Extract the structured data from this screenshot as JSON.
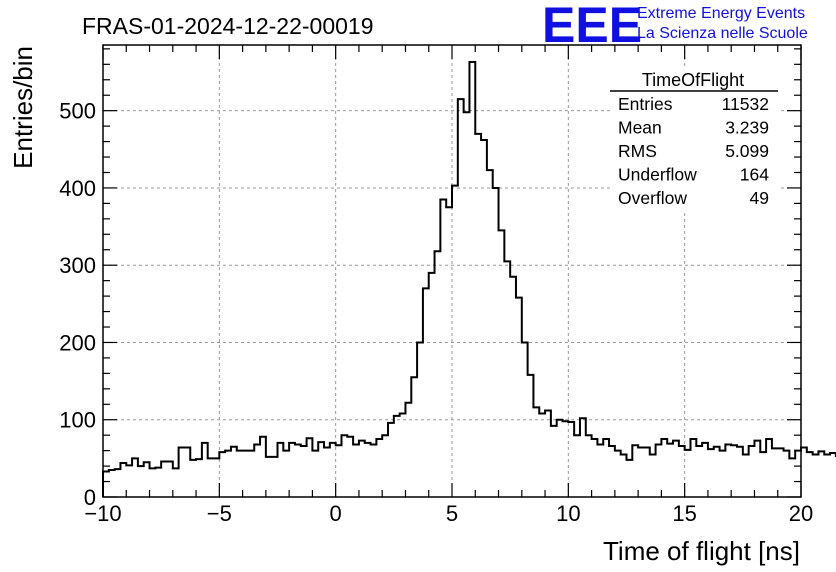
{
  "chart_data": {
    "type": "histogram",
    "title": "FRAS-01-2024-12-22-00019",
    "xlabel": "Time of flight [ns]",
    "ylabel": "Entries/bin",
    "xlim": [
      -10,
      20
    ],
    "ylim": [
      0,
      585
    ],
    "xticks": [
      -10,
      -5,
      0,
      5,
      10,
      15,
      20
    ],
    "yticks": [
      0,
      100,
      200,
      300,
      400,
      500
    ],
    "grid": true,
    "bin_width": 0.25,
    "bin_start": -10,
    "values": [
      33,
      35,
      36,
      44,
      41,
      50,
      40,
      45,
      37,
      38,
      46,
      46,
      37,
      64,
      64,
      48,
      49,
      70,
      50,
      50,
      58,
      60,
      65,
      60,
      60,
      60,
      68,
      78,
      52,
      52,
      70,
      60,
      70,
      68,
      66,
      76,
      60,
      71,
      64,
      70,
      67,
      80,
      78,
      68,
      73,
      70,
      68,
      75,
      80,
      96,
      105,
      108,
      122,
      155,
      200,
      270,
      290,
      318,
      385,
      375,
      403,
      515,
      498,
      563,
      470,
      462,
      423,
      400,
      345,
      305,
      285,
      258,
      200,
      158,
      116,
      108,
      112,
      92,
      100,
      98,
      97,
      80,
      102,
      80,
      75,
      68,
      75,
      66,
      60,
      55,
      48,
      67,
      64,
      64,
      55,
      68,
      75,
      69,
      73,
      66,
      61,
      75,
      66,
      70,
      62,
      65,
      60,
      68,
      67,
      65,
      55,
      66,
      73,
      58,
      75,
      63,
      63,
      60,
      50,
      60,
      64,
      58,
      55,
      59,
      55,
      57,
      53,
      54,
      50,
      47,
      49,
      50,
      47,
      47,
      35,
      42,
      42,
      38,
      34,
      25,
      30,
      25,
      25,
      20,
      13,
      13,
      13,
      10,
      7,
      13,
      11,
      11,
      6,
      6,
      12,
      12,
      9,
      6,
      8,
      7
    ]
  },
  "stats_box": {
    "title": "TimeOfFlight",
    "rows": [
      {
        "label": "Entries",
        "value": "11532"
      },
      {
        "label": "Mean",
        "value": "3.239"
      },
      {
        "label": "RMS",
        "value": "5.099"
      },
      {
        "label": "Underflow",
        "value": "164"
      },
      {
        "label": "Overflow",
        "value": "49"
      }
    ]
  },
  "logo": {
    "mark": "EEE",
    "line1": "Extreme Energy Events",
    "line2": "La Scienza nelle Scuole",
    "color": "#1010e0"
  }
}
